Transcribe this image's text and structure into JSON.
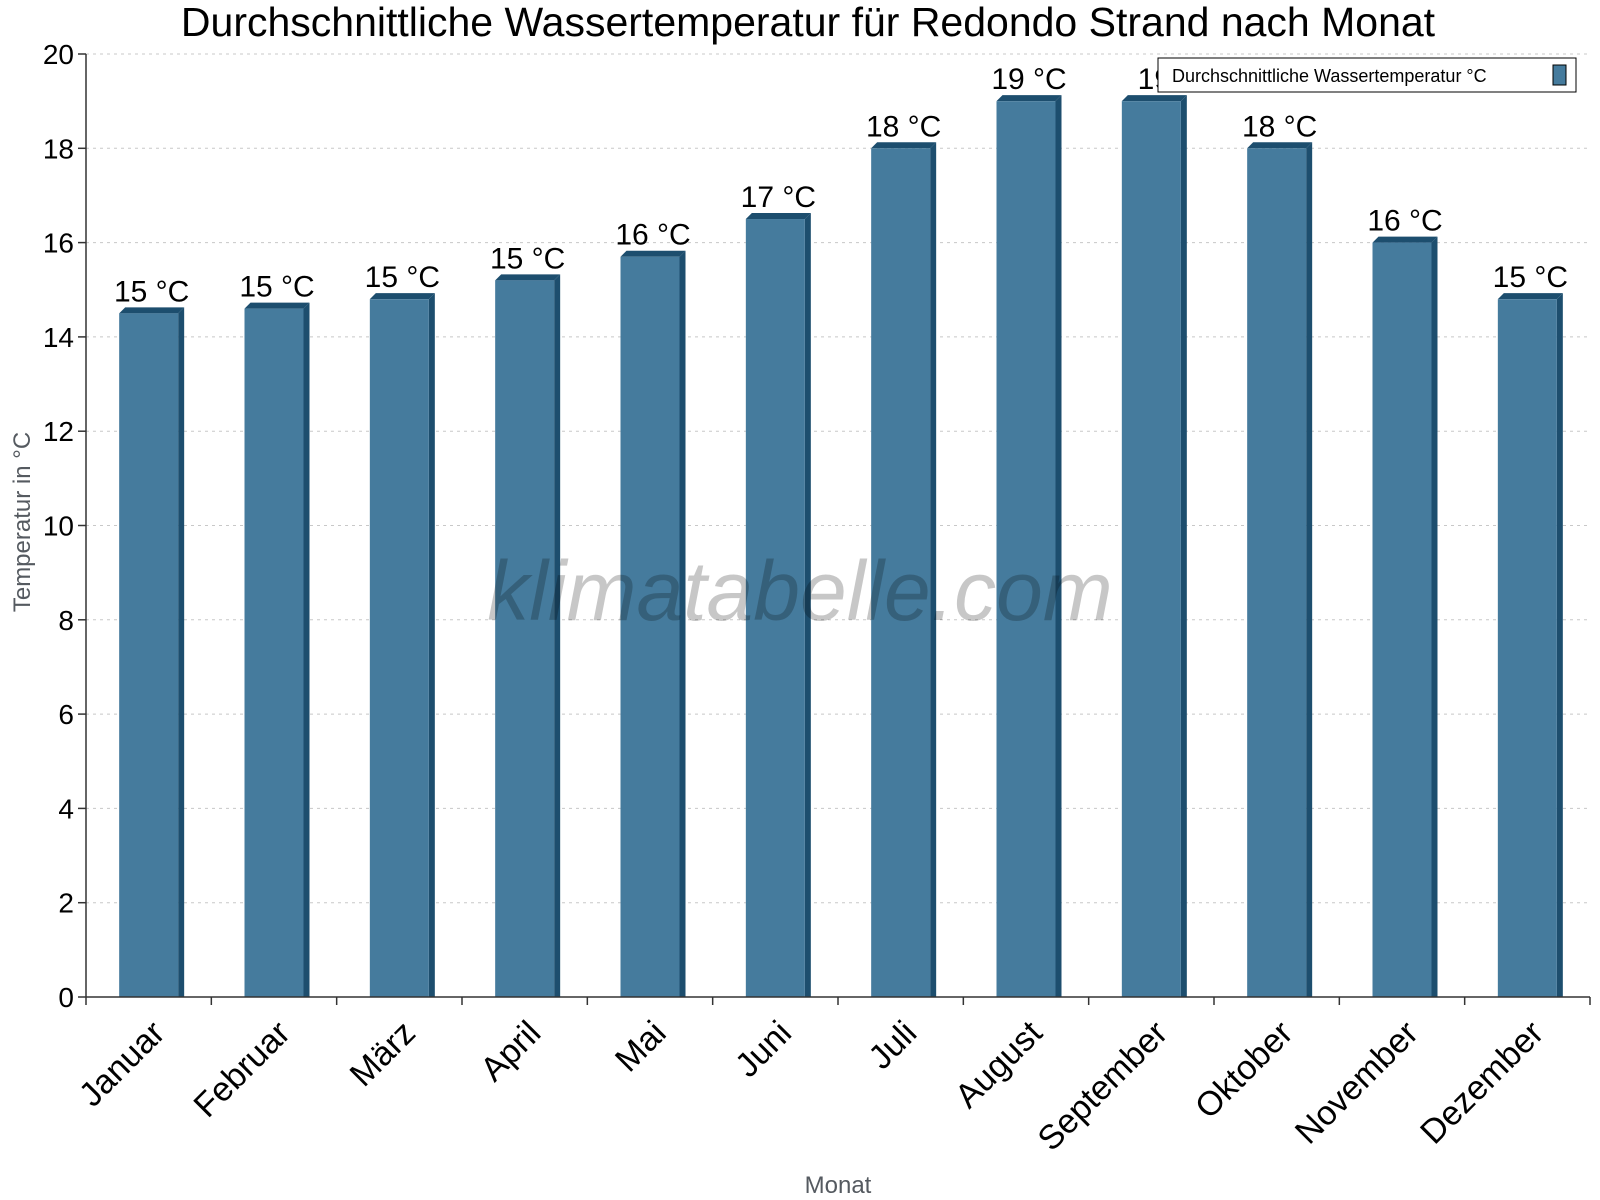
{
  "watermark": "klimatabelle.com",
  "colors": {
    "bar": "#457b9d",
    "bar_dark": "#1d4e6e",
    "axis": "#333333",
    "grid": "#c8c8c8"
  },
  "chart_data": {
    "type": "bar",
    "title": "Durchschnittliche Wassertemperatur für Redondo Strand nach Monat",
    "xlabel": "Monat",
    "ylabel": "Temperatur in °C",
    "ylim": [
      0,
      20
    ],
    "yticks": [
      0,
      2,
      4,
      6,
      8,
      10,
      12,
      14,
      16,
      18,
      20
    ],
    "grid": true,
    "legend_position": "top-right",
    "categories": [
      "Januar",
      "Februar",
      "März",
      "April",
      "Mai",
      "Juni",
      "Juli",
      "August",
      "September",
      "Oktober",
      "November",
      "Dezember"
    ],
    "series": [
      {
        "name": "Durchschnittliche Wassertemperatur °C",
        "values": [
          14.5,
          14.6,
          14.8,
          15.2,
          15.7,
          16.5,
          18.0,
          19.0,
          19.0,
          18.0,
          16.0,
          14.8
        ],
        "labels": [
          "15 °C",
          "15 °C",
          "15 °C",
          "15 °C",
          "16 °C",
          "17 °C",
          "18 °C",
          "19 °C",
          "19",
          "18 °C",
          "16 °C",
          "15 °C"
        ]
      }
    ]
  }
}
